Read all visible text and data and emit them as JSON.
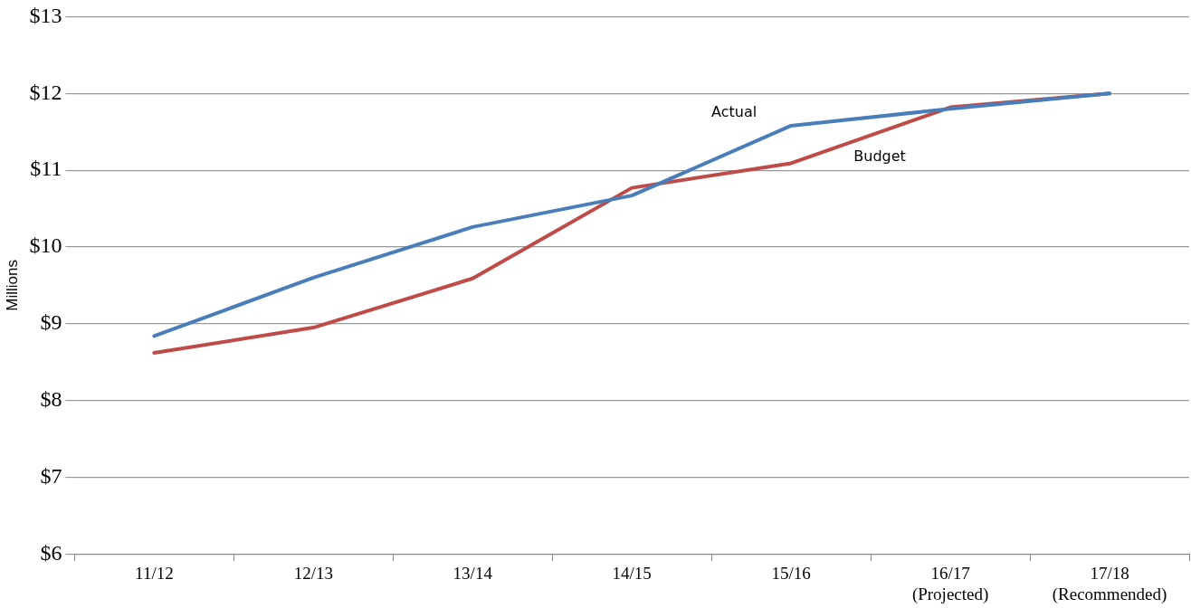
{
  "chart_data": {
    "type": "line",
    "ylabel": "Millions",
    "categories": [
      "11/12",
      "12/13",
      "13/14",
      "14/15",
      "15/16",
      "16/17\n(Projected)",
      "17/18\n(Recommended)"
    ],
    "series": [
      {
        "name": "Actual",
        "color": "#4a7ebb",
        "values": [
          8.84,
          9.6,
          10.26,
          10.67,
          11.58,
          11.8,
          12.0
        ]
      },
      {
        "name": "Budget",
        "color": "#be4b48",
        "values": [
          8.62,
          8.95,
          9.59,
          10.77,
          11.09,
          11.82,
          12.0
        ]
      }
    ],
    "ylim": [
      6,
      13
    ],
    "yticks": [
      {
        "value": 6,
        "label": "$6"
      },
      {
        "value": 7,
        "label": "$7"
      },
      {
        "value": 8,
        "label": "$8"
      },
      {
        "value": 9,
        "label": "$9"
      },
      {
        "value": 10,
        "label": "$10"
      },
      {
        "value": 11,
        "label": "$11"
      },
      {
        "value": 12,
        "label": "$12"
      },
      {
        "value": 13,
        "label": "$13"
      }
    ],
    "grid": "y",
    "legend": false,
    "marker": "none",
    "line_style": "solid"
  }
}
